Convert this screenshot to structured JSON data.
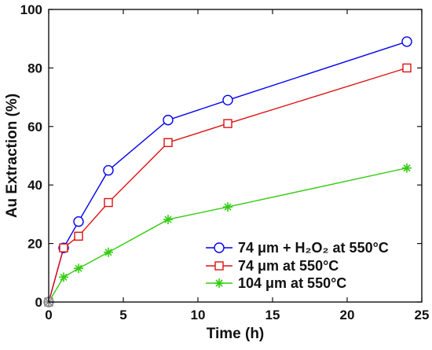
{
  "chart_data": {
    "type": "line",
    "title": "",
    "xlabel": "Time (h)",
    "ylabel": "Au Extraction (%)",
    "xlim": [
      0,
      25
    ],
    "ylim": [
      0,
      100
    ],
    "xticks": [
      "0",
      "5",
      "10",
      "15",
      "20",
      "25"
    ],
    "yticks": [
      "0",
      "20",
      "40",
      "60",
      "80",
      "100"
    ],
    "grid": false,
    "legend_position": "bottom-right",
    "series": [
      {
        "name": "74 μm + H₂O₂ at 550°C",
        "color": "#0000ee",
        "marker": "circle",
        "x": [
          0,
          1,
          2,
          4,
          8,
          12,
          24
        ],
        "y": [
          0,
          18.5,
          27.5,
          45,
          62.2,
          69,
          89
        ]
      },
      {
        "name": "74 μm at 550°C",
        "color": "#dd1111",
        "marker": "square",
        "x": [
          0,
          1,
          2,
          4,
          8,
          12,
          24
        ],
        "y": [
          0,
          18.5,
          22.5,
          34,
          54.5,
          61,
          80
        ]
      },
      {
        "name": "104 μm at 550°C",
        "color": "#33cc11",
        "marker": "asterisk",
        "x": [
          0,
          1,
          2,
          4,
          8,
          12,
          24
        ],
        "y": [
          0,
          8.5,
          11.5,
          17,
          28.2,
          32.5,
          45.8
        ]
      }
    ]
  },
  "colors": {
    "axis": "#111111",
    "marker_origin": "#888888",
    "background": "#ffffff"
  }
}
